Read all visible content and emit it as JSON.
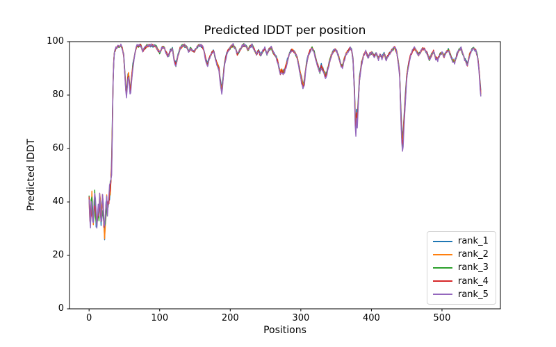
{
  "figure": {
    "background": "#ffffff"
  },
  "chart_data": {
    "type": "line",
    "title": "Predicted lDDT per position",
    "xlabel": "Positions",
    "ylabel": "Predicted lDDT",
    "xlim": [
      -27.75,
      582.75
    ],
    "ylim": [
      0,
      100
    ],
    "x_ticks": [
      0,
      100,
      200,
      300,
      400,
      500
    ],
    "y_ticks": [
      0,
      20,
      40,
      60,
      80,
      100
    ],
    "grid": false,
    "legend_position": "lower right",
    "x_max": 555,
    "x_step": 1,
    "noisy_region_end": 30,
    "series": [
      {
        "name": "rank_1",
        "color": "#1f77b4",
        "depth": 0.95,
        "noise_low": 3.5,
        "noise_high": 0.55,
        "seed": 1
      },
      {
        "name": "rank_2",
        "color": "#ff7f0e",
        "depth": 1.0,
        "noise_low": 3.5,
        "noise_high": 0.55,
        "seed": 2
      },
      {
        "name": "rank_3",
        "color": "#2ca02c",
        "depth": 1.06,
        "noise_low": 3.5,
        "noise_high": 0.55,
        "seed": 3
      },
      {
        "name": "rank_4",
        "color": "#d62728",
        "depth": 1.05,
        "noise_low": 3.5,
        "noise_high": 0.55,
        "seed": 4
      },
      {
        "name": "rank_5",
        "color": "#9467bd",
        "depth": 1.12,
        "noise_low": 3.5,
        "noise_high": 0.55,
        "seed": 5
      }
    ],
    "base_profile": [
      [
        0,
        44
      ],
      [
        1,
        36
      ],
      [
        2,
        33
      ],
      [
        3,
        38
      ],
      [
        4,
        41
      ],
      [
        5,
        35
      ],
      [
        6,
        31
      ],
      [
        7,
        37
      ],
      [
        8,
        42
      ],
      [
        9,
        38
      ],
      [
        10,
        34
      ],
      [
        11,
        30
      ],
      [
        12,
        33
      ],
      [
        13,
        39
      ],
      [
        14,
        36
      ],
      [
        15,
        42
      ],
      [
        16,
        38
      ],
      [
        17,
        33
      ],
      [
        18,
        36
      ],
      [
        19,
        40
      ],
      [
        20,
        37
      ],
      [
        21,
        31
      ],
      [
        22,
        29
      ],
      [
        23,
        34
      ],
      [
        24,
        37
      ],
      [
        25,
        40
      ],
      [
        26,
        36
      ],
      [
        27,
        41
      ],
      [
        28,
        39
      ],
      [
        29,
        43
      ],
      [
        30,
        46
      ],
      [
        31,
        48
      ],
      [
        32,
        55
      ],
      [
        33,
        70
      ],
      [
        34,
        85
      ],
      [
        35,
        93
      ],
      [
        36,
        96
      ],
      [
        38,
        97.5
      ],
      [
        40,
        98
      ],
      [
        42,
        98.3
      ],
      [
        45,
        98.5
      ],
      [
        47,
        97.5
      ],
      [
        49,
        95
      ],
      [
        51,
        87
      ],
      [
        52,
        83
      ],
      [
        53,
        81
      ],
      [
        54,
        84
      ],
      [
        55,
        87
      ],
      [
        56,
        88
      ],
      [
        57,
        85
      ],
      [
        58,
        82
      ],
      [
        59,
        83
      ],
      [
        60,
        86
      ],
      [
        62,
        91
      ],
      [
        64,
        94
      ],
      [
        66,
        97
      ],
      [
        68,
        98.3
      ],
      [
        70,
        98.3
      ],
      [
        73,
        98.6
      ],
      [
        76,
        96.5
      ],
      [
        79,
        97.5
      ],
      [
        82,
        98.6
      ],
      [
        85,
        98.3
      ],
      [
        88,
        98.6
      ],
      [
        91,
        98.3
      ],
      [
        94,
        98.6
      ],
      [
        97,
        97
      ],
      [
        100,
        96
      ],
      [
        103,
        97.5
      ],
      [
        106,
        98
      ],
      [
        109,
        96
      ],
      [
        112,
        94.5
      ],
      [
        115,
        96.5
      ],
      [
        118,
        97.5
      ],
      [
        121,
        92.5
      ],
      [
        123,
        91.5
      ],
      [
        126,
        95
      ],
      [
        129,
        97.5
      ],
      [
        132,
        98.4
      ],
      [
        135,
        98.6
      ],
      [
        138,
        98
      ],
      [
        141,
        96.5
      ],
      [
        144,
        97.5
      ],
      [
        147,
        96.3
      ],
      [
        150,
        96.5
      ],
      [
        153,
        98
      ],
      [
        156,
        98.6
      ],
      [
        159,
        98.4
      ],
      [
        162,
        97.5
      ],
      [
        164,
        95
      ],
      [
        166,
        92.5
      ],
      [
        168,
        91.5
      ],
      [
        170,
        93.5
      ],
      [
        173,
        95.5
      ],
      [
        176,
        96.5
      ],
      [
        178,
        95
      ],
      [
        181,
        92
      ],
      [
        184,
        90
      ],
      [
        186,
        85
      ],
      [
        188,
        82
      ],
      [
        190,
        87
      ],
      [
        192,
        92
      ],
      [
        195,
        95.5
      ],
      [
        198,
        97
      ],
      [
        201,
        98
      ],
      [
        204,
        98.6
      ],
      [
        207,
        97.5
      ],
      [
        210,
        95.5
      ],
      [
        213,
        96.5
      ],
      [
        216,
        98
      ],
      [
        219,
        98.6
      ],
      [
        222,
        98.3
      ],
      [
        225,
        97
      ],
      [
        228,
        98
      ],
      [
        231,
        98.5
      ],
      [
        234,
        97
      ],
      [
        237,
        95.5
      ],
      [
        240,
        96.5
      ],
      [
        243,
        95
      ],
      [
        246,
        96.5
      ],
      [
        249,
        97.5
      ],
      [
        252,
        95.5
      ],
      [
        255,
        97
      ],
      [
        258,
        97.8
      ],
      [
        261,
        96
      ],
      [
        264,
        95
      ],
      [
        267,
        93
      ],
      [
        269,
        90.5
      ],
      [
        271,
        88.5
      ],
      [
        273,
        89.5
      ],
      [
        275,
        88.5
      ],
      [
        277,
        89.5
      ],
      [
        280,
        92
      ],
      [
        283,
        95
      ],
      [
        286,
        96.5
      ],
      [
        289,
        97
      ],
      [
        292,
        95.5
      ],
      [
        295,
        94
      ],
      [
        298,
        90
      ],
      [
        301,
        86
      ],
      [
        303,
        83.5
      ],
      [
        305,
        85
      ],
      [
        307,
        90
      ],
      [
        310,
        94.5
      ],
      [
        313,
        96.5
      ],
      [
        316,
        97.5
      ],
      [
        319,
        96
      ],
      [
        322,
        93
      ],
      [
        325,
        90.5
      ],
      [
        327,
        89
      ],
      [
        329,
        91
      ],
      [
        331,
        90
      ],
      [
        333,
        88.5
      ],
      [
        335,
        87.5
      ],
      [
        337,
        89
      ],
      [
        339,
        91
      ],
      [
        342,
        94
      ],
      [
        345,
        96
      ],
      [
        348,
        97
      ],
      [
        351,
        96.5
      ],
      [
        354,
        94
      ],
      [
        357,
        91.5
      ],
      [
        359,
        91
      ],
      [
        361,
        93
      ],
      [
        364,
        95.5
      ],
      [
        367,
        96.5
      ],
      [
        370,
        97.5
      ],
      [
        372,
        97
      ],
      [
        374,
        93
      ],
      [
        376,
        82
      ],
      [
        377,
        72
      ],
      [
        378,
        68
      ],
      [
        379,
        74
      ],
      [
        380,
        71
      ],
      [
        381,
        76
      ],
      [
        383,
        86
      ],
      [
        386,
        92
      ],
      [
        389,
        95
      ],
      [
        392,
        96.5
      ],
      [
        395,
        94
      ],
      [
        398,
        95.5
      ],
      [
        401,
        96
      ],
      [
        404,
        94.5
      ],
      [
        407,
        95.5
      ],
      [
        410,
        93.5
      ],
      [
        412,
        95
      ],
      [
        415,
        94
      ],
      [
        418,
        95.5
      ],
      [
        421,
        93.5
      ],
      [
        424,
        95
      ],
      [
        427,
        96
      ],
      [
        430,
        97
      ],
      [
        433,
        98
      ],
      [
        436,
        96
      ],
      [
        438,
        92.5
      ],
      [
        440,
        88
      ],
      [
        441,
        80
      ],
      [
        442,
        72
      ],
      [
        443,
        66
      ],
      [
        444,
        63
      ],
      [
        445,
        65
      ],
      [
        446,
        70
      ],
      [
        448,
        79
      ],
      [
        450,
        87
      ],
      [
        452,
        91
      ],
      [
        455,
        94.5
      ],
      [
        458,
        96.5
      ],
      [
        461,
        97.5
      ],
      [
        464,
        96.5
      ],
      [
        467,
        95
      ],
      [
        470,
        96.5
      ],
      [
        473,
        97.5
      ],
      [
        476,
        97
      ],
      [
        479,
        95.5
      ],
      [
        482,
        93.5
      ],
      [
        485,
        95
      ],
      [
        488,
        96.5
      ],
      [
        491,
        94
      ],
      [
        494,
        93.5
      ],
      [
        497,
        95.5
      ],
      [
        500,
        96
      ],
      [
        503,
        94.5
      ],
      [
        506,
        96
      ],
      [
        509,
        97
      ],
      [
        512,
        95
      ],
      [
        515,
        93
      ],
      [
        518,
        92.5
      ],
      [
        521,
        95
      ],
      [
        524,
        97
      ],
      [
        527,
        97.5
      ],
      [
        530,
        95
      ],
      [
        533,
        93
      ],
      [
        536,
        91.5
      ],
      [
        539,
        95
      ],
      [
        542,
        97
      ],
      [
        545,
        97.5
      ],
      [
        548,
        96.5
      ],
      [
        550,
        95
      ],
      [
        551,
        93
      ],
      [
        552,
        91
      ],
      [
        553,
        88
      ],
      [
        554,
        84
      ],
      [
        555,
        81
      ]
    ]
  }
}
